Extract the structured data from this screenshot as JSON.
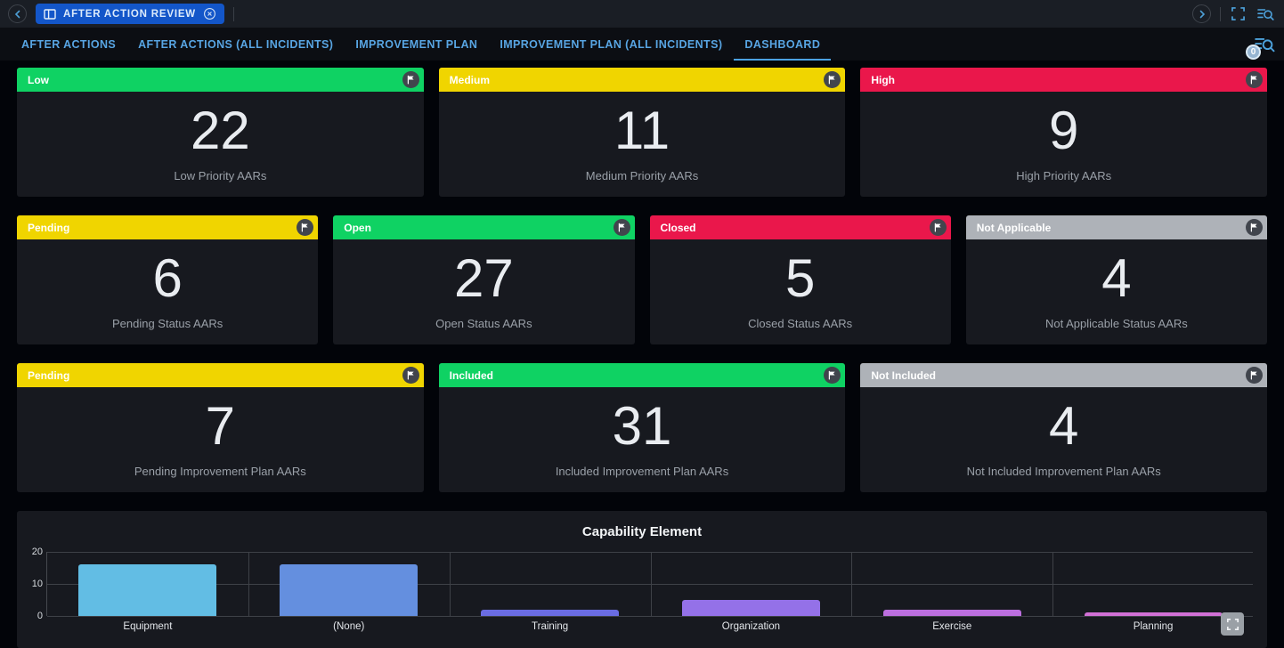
{
  "window_bar": {
    "tab_label": "AFTER ACTION REVIEW"
  },
  "nav": {
    "tabs": [
      {
        "label": "AFTER ACTIONS",
        "active": false
      },
      {
        "label": "AFTER ACTIONS (ALL INCIDENTS)",
        "active": false
      },
      {
        "label": "IMPROVEMENT PLAN",
        "active": false
      },
      {
        "label": "IMPROVEMENT PLAN (ALL INCIDENTS)",
        "active": false
      },
      {
        "label": "DASHBOARD",
        "active": true
      }
    ],
    "badge": "0"
  },
  "icons": {
    "flag": "flag-glyph",
    "fullscreen": "corner-brackets",
    "search_list": "list-with-magnifier",
    "back": "chevron-left",
    "forward": "chevron-right",
    "close": "circled-x",
    "tab_window": "split-columns"
  },
  "colors": {
    "green": "#0fd263",
    "yellow": "#f0d500",
    "red": "#ea174b",
    "gray": "#aeb2b8",
    "accent_blue": "#4ba1e2",
    "card_bg": "#17191f"
  },
  "cards": {
    "rows": [
      {
        "items": [
          {
            "header": "Low",
            "color": "#0fd263",
            "value": "22",
            "label": "Low Priority AARs"
          },
          {
            "header": "Medium",
            "color": "#f0d500",
            "value": "11",
            "label": "Medium Priority AARs"
          },
          {
            "header": "High",
            "color": "#ea174b",
            "value": "9",
            "label": "High Priority AARs"
          }
        ]
      },
      {
        "items": [
          {
            "header": "Pending",
            "color": "#f0d500",
            "value": "6",
            "label": "Pending Status AARs"
          },
          {
            "header": "Open",
            "color": "#0fd263",
            "value": "27",
            "label": "Open Status AARs"
          },
          {
            "header": "Closed",
            "color": "#ea174b",
            "value": "5",
            "label": "Closed Status AARs"
          },
          {
            "header": "Not Applicable",
            "color": "#aeb2b8",
            "value": "4",
            "label": "Not Applicable Status AARs"
          }
        ]
      },
      {
        "items": [
          {
            "header": "Pending",
            "color": "#f0d500",
            "value": "7",
            "label": "Pending Improvement Plan AARs"
          },
          {
            "header": "Included",
            "color": "#0fd263",
            "value": "31",
            "label": "Included Improvement Plan AARs"
          },
          {
            "header": "Not Included",
            "color": "#aeb2b8",
            "value": "4",
            "label": "Not Included Improvement Plan AARs"
          }
        ]
      }
    ]
  },
  "chart_data": {
    "type": "bar",
    "title": "Capability Element",
    "categories": [
      "Equipment",
      "(None)",
      "Training",
      "Organization",
      "Exercise",
      "Planning"
    ],
    "values": [
      16,
      16,
      2,
      5,
      2,
      1
    ],
    "bar_colors": [
      "#62bde4",
      "#648fdf",
      "#6a6ce2",
      "#9471e8",
      "#bc6fdf",
      "#d170d5"
    ],
    "xlabel": "",
    "ylabel": "",
    "ylim": [
      0,
      20
    ],
    "yticks": [
      0,
      10,
      20
    ],
    "grid": true,
    "legend": "none"
  }
}
